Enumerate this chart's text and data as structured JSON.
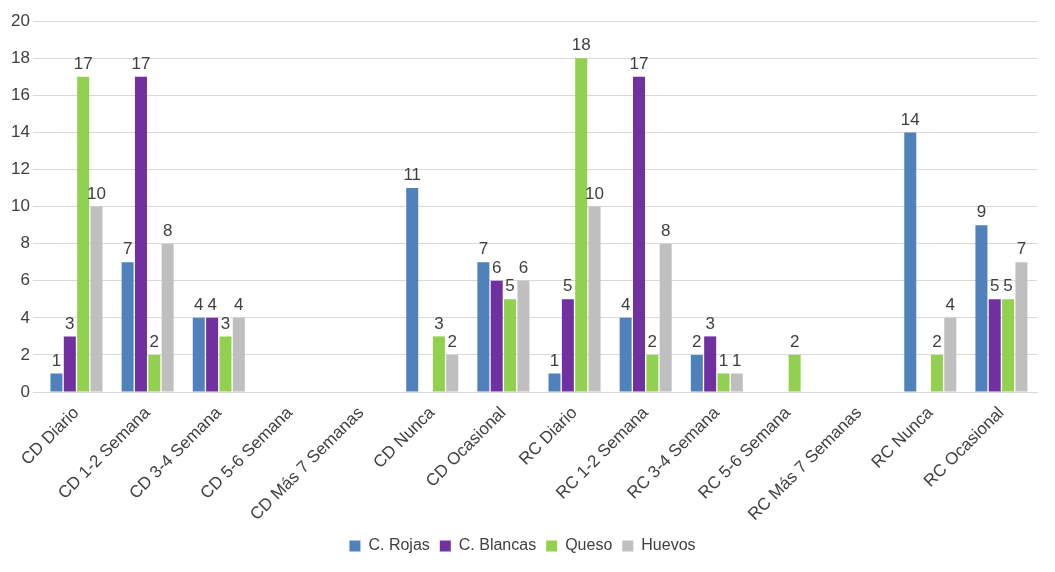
{
  "chart_data": {
    "type": "bar",
    "categories": [
      "CD Diario",
      "CD 1-2 Semana",
      "CD 3-4 Semana",
      "CD 5-6 Semana",
      "CD Más 7 Semanas",
      "CD Nunca",
      "CD Ocasional",
      "RC Diario",
      "RC 1-2 Semana",
      "RC 3-4 Semana",
      "RC 5-6 Semana",
      "RC Más 7 Semanas",
      "RC Nunca",
      "RC Ocasional"
    ],
    "series": [
      {
        "name": "C. Rojas",
        "color": "#4f81bd",
        "values": [
          1,
          7,
          4,
          null,
          null,
          11,
          7,
          1,
          4,
          2,
          null,
          null,
          14,
          9
        ]
      },
      {
        "name": "C. Blancas",
        "color": "#7030a0",
        "values": [
          3,
          17,
          4,
          null,
          null,
          null,
          6,
          5,
          17,
          3,
          null,
          null,
          null,
          5
        ]
      },
      {
        "name": "Queso",
        "color": "#92d050",
        "values": [
          17,
          2,
          3,
          null,
          null,
          3,
          5,
          18,
          2,
          1,
          2,
          null,
          2,
          5
        ]
      },
      {
        "name": "Huevos",
        "color": "#bfbfbf",
        "values": [
          10,
          8,
          4,
          null,
          null,
          2,
          6,
          10,
          8,
          1,
          null,
          null,
          4,
          7
        ]
      }
    ],
    "ylim": [
      0,
      20
    ],
    "yticks": [
      0,
      2,
      4,
      6,
      8,
      10,
      12,
      14,
      16,
      18,
      20
    ],
    "grid": "y",
    "legend": "bottom",
    "data_labels": true
  }
}
